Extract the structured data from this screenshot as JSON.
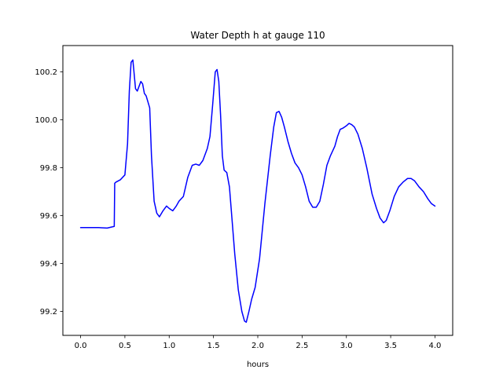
{
  "chart_data": {
    "type": "line",
    "title": "Water Depth h at gauge 110",
    "xlabel": "hours",
    "ylabel": "",
    "xlim": [
      -0.2,
      4.2
    ],
    "ylim": [
      99.1,
      100.31
    ],
    "xticks": [
      0.0,
      0.5,
      1.0,
      1.5,
      2.0,
      2.5,
      3.0,
      3.5,
      4.0
    ],
    "xtick_labels": [
      "0.0",
      "0.5",
      "1.0",
      "1.5",
      "2.0",
      "2.5",
      "3.0",
      "3.5",
      "4.0"
    ],
    "yticks": [
      99.2,
      99.4,
      99.6,
      99.8,
      100.0,
      100.2
    ],
    "ytick_labels": [
      "99.2",
      "99.4",
      "99.6",
      "99.8",
      "100.0",
      "100.2"
    ],
    "grid": false,
    "series": [
      {
        "color": "#0000ff",
        "x": [
          0.0,
          0.1,
          0.2,
          0.3,
          0.38,
          0.385,
          0.4,
          0.45,
          0.5,
          0.53,
          0.55,
          0.57,
          0.59,
          0.62,
          0.64,
          0.68,
          0.7,
          0.72,
          0.74,
          0.78,
          0.8,
          0.83,
          0.86,
          0.89,
          0.93,
          0.97,
          1.0,
          1.04,
          1.08,
          1.11,
          1.16,
          1.21,
          1.26,
          1.3,
          1.34,
          1.38,
          1.43,
          1.46,
          1.49,
          1.52,
          1.54,
          1.56,
          1.58,
          1.6,
          1.62,
          1.65,
          1.68,
          1.71,
          1.74,
          1.78,
          1.82,
          1.85,
          1.87,
          1.9,
          1.93,
          1.97,
          2.02,
          2.08,
          2.14,
          2.18,
          2.21,
          2.24,
          2.27,
          2.3,
          2.34,
          2.38,
          2.42,
          2.46,
          2.5,
          2.54,
          2.58,
          2.62,
          2.66,
          2.7,
          2.74,
          2.78,
          2.82,
          2.87,
          2.9,
          2.93,
          2.96,
          3.0,
          3.03,
          3.06,
          3.09,
          3.13,
          3.18,
          3.23,
          3.29,
          3.34,
          3.38,
          3.42,
          3.45,
          3.49,
          3.54,
          3.59,
          3.64,
          3.69,
          3.73,
          3.77,
          3.82,
          3.87,
          3.92,
          3.96,
          4.0
        ],
        "y": [
          99.55,
          99.55,
          99.55,
          99.548,
          99.555,
          99.735,
          99.74,
          99.75,
          99.77,
          99.9,
          100.12,
          100.24,
          100.25,
          100.13,
          100.12,
          100.16,
          100.15,
          100.11,
          100.1,
          100.05,
          99.85,
          99.66,
          99.61,
          99.595,
          99.62,
          99.64,
          99.63,
          99.62,
          99.64,
          99.66,
          99.68,
          99.76,
          99.81,
          99.815,
          99.81,
          99.83,
          99.88,
          99.93,
          100.06,
          100.2,
          100.21,
          100.16,
          100.02,
          99.85,
          99.79,
          99.78,
          99.72,
          99.58,
          99.44,
          99.29,
          99.2,
          99.16,
          99.155,
          99.2,
          99.25,
          99.3,
          99.42,
          99.65,
          99.85,
          99.97,
          100.03,
          100.035,
          100.01,
          99.97,
          99.91,
          99.86,
          99.82,
          99.8,
          99.77,
          99.72,
          99.66,
          99.635,
          99.635,
          99.66,
          99.73,
          99.81,
          99.85,
          99.89,
          99.93,
          99.96,
          99.965,
          99.975,
          99.985,
          99.98,
          99.97,
          99.94,
          99.88,
          99.8,
          99.69,
          99.63,
          99.59,
          99.57,
          99.58,
          99.62,
          99.68,
          99.72,
          99.74,
          99.755,
          99.755,
          99.745,
          99.72,
          99.7,
          99.67,
          99.65,
          99.64
        ]
      }
    ]
  }
}
